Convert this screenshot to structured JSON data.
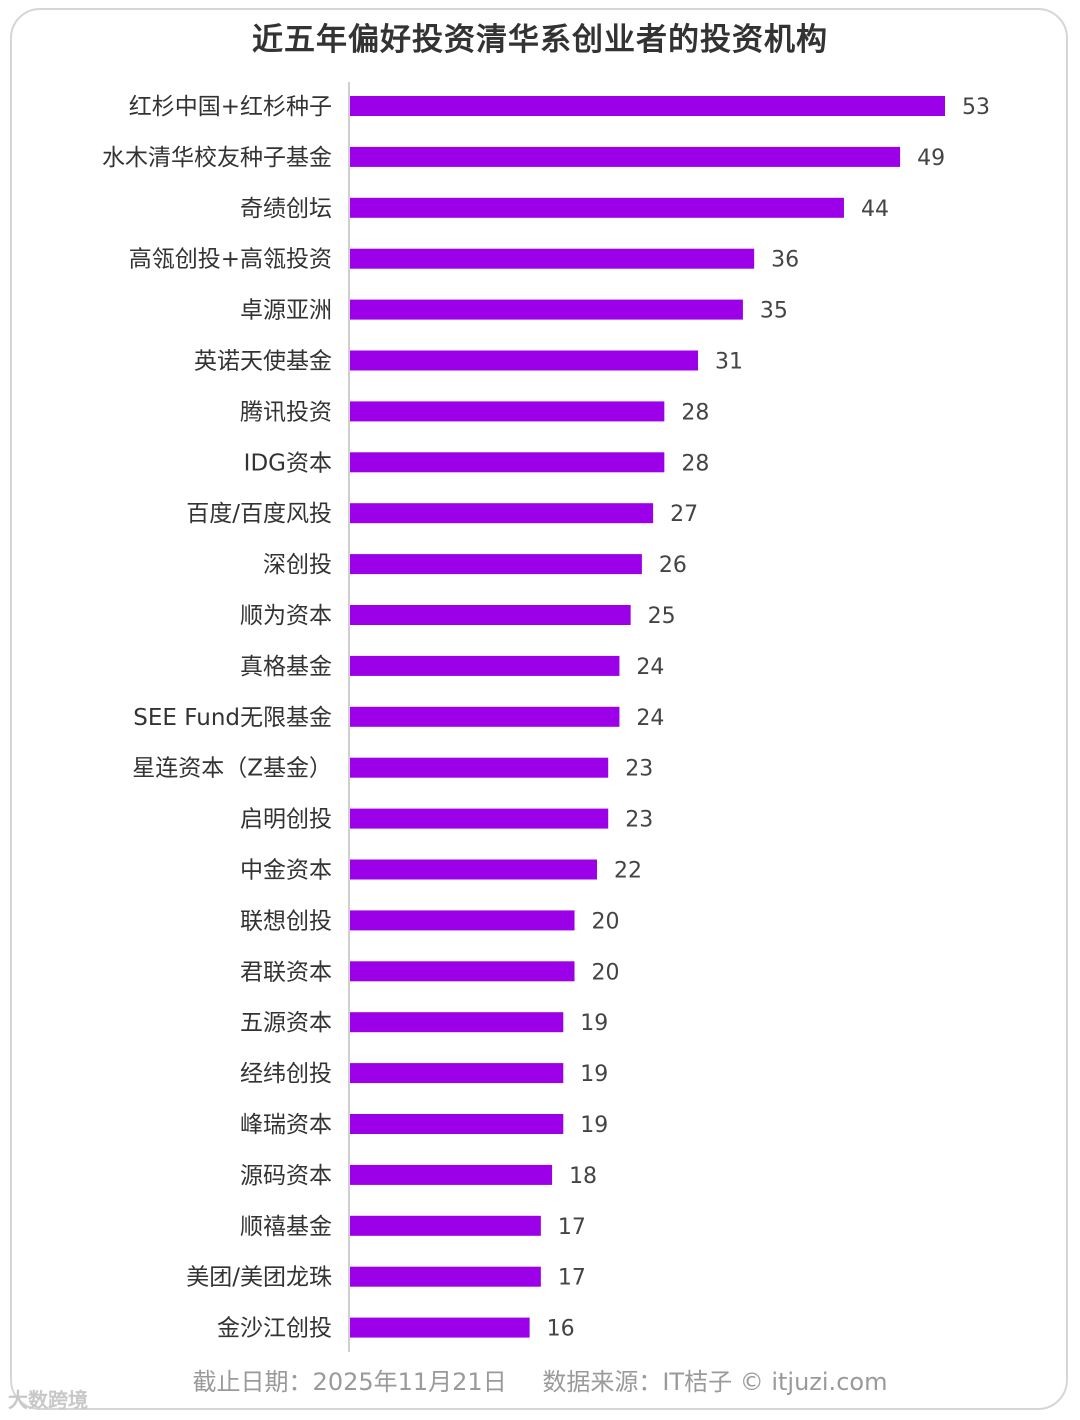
{
  "title": "近五年偏好投资清华系创业者的投资机构",
  "footer": {
    "date_label": "截止日期：2025年11月21日",
    "source_label": "数据来源：IT桔子 © itjuzi.com"
  },
  "watermark": "大数跨境",
  "colors": {
    "bar": "#9b00e8",
    "axis": "#cfcfcf",
    "label": "#333333",
    "value": "#444444"
  },
  "chart_data": {
    "type": "bar",
    "orientation": "horizontal",
    "title": "近五年偏好投资清华系创业者的投资机构",
    "categories": [
      "红杉中国+红杉种子",
      "水木清华校友种子基金",
      "奇绩创坛",
      "高瓴创投+高瓴投资",
      "卓源亚洲",
      "英诺天使基金",
      "腾讯投资",
      "IDG资本",
      "百度/百度风投",
      "深创投",
      "顺为资本",
      "真格基金",
      "SEE Fund无限基金",
      "星连资本（Z基金）",
      "启明创投",
      "中金资本",
      "联想创投",
      "君联资本",
      "五源资本",
      "经纬创投",
      "峰瑞资本",
      "源码资本",
      "顺禧基金",
      "美团/美团龙珠",
      "金沙江创投"
    ],
    "values": [
      53,
      49,
      44,
      36,
      35,
      31,
      28,
      28,
      27,
      26,
      25,
      24,
      24,
      23,
      23,
      22,
      20,
      20,
      19,
      19,
      19,
      18,
      17,
      17,
      16
    ],
    "data_labels": true,
    "grid": false
  }
}
